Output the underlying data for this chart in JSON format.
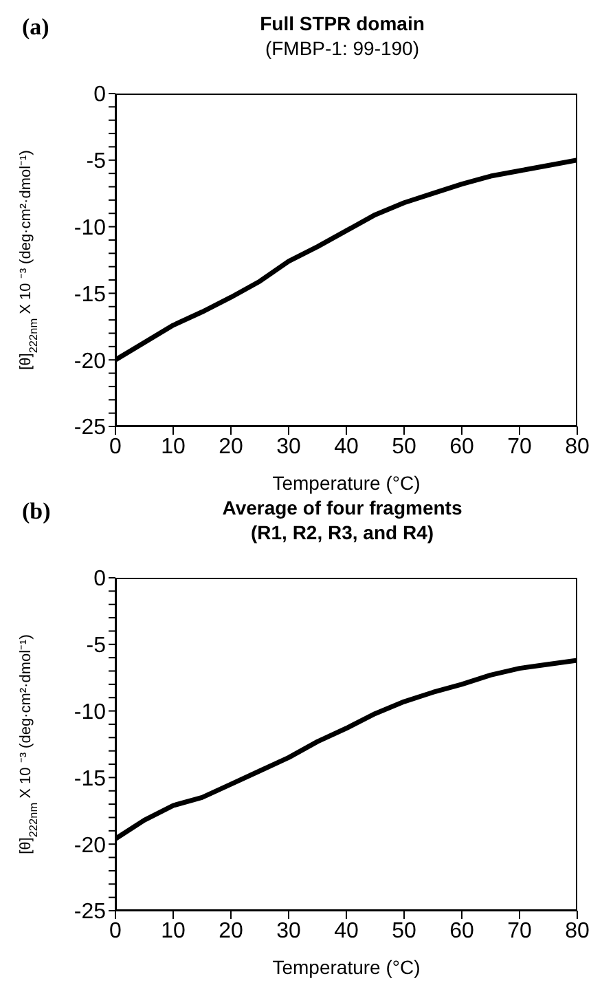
{
  "chart_data": [
    {
      "type": "line",
      "title": "Full STPR domain",
      "subtitle": "(FMBP-1: 99-190)",
      "xlabel": "Temperature (°C)",
      "ylabel": "[θ]$_{222nm}$ X 10 ⁻³ (deg·cm²·dmol⁻¹)",
      "annotations": [
        "(a)"
      ],
      "x": [
        0,
        5,
        10,
        15,
        20,
        25,
        30,
        35,
        40,
        45,
        50,
        55,
        60,
        65,
        70,
        75,
        80
      ],
      "series": [
        {
          "color": "#000000",
          "values": [
            -20,
            -18.7,
            -17.4,
            -16.4,
            -15.3,
            -14.1,
            -12.6,
            -11.5,
            -10.3,
            -9.1,
            -8.2,
            -7.5,
            -6.8,
            -6.2,
            -5.8,
            -5.4,
            -5.0
          ]
        }
      ],
      "xlim": [
        0,
        80
      ],
      "xticks": [
        0,
        10,
        20,
        30,
        40,
        50,
        60,
        70,
        80
      ],
      "ylim": [
        -25,
        0
      ],
      "yticks": [
        0,
        {
          "value": -1,
          "label": null
        },
        {
          "value": -2,
          "label": null
        },
        {
          "value": -3,
          "label": null
        },
        {
          "value": -4,
          "label": null
        },
        -5,
        {
          "value": -6,
          "label": null
        },
        {
          "value": -7,
          "label": null
        },
        {
          "value": -8,
          "label": null
        },
        {
          "value": -9,
          "label": null
        },
        -10,
        {
          "value": -11,
          "label": null
        },
        {
          "value": -12,
          "label": null
        },
        {
          "value": -13,
          "label": null
        },
        {
          "value": -14,
          "label": null
        },
        -15,
        {
          "value": -16,
          "label": null
        },
        {
          "value": -17,
          "label": null
        },
        {
          "value": -18,
          "label": null
        },
        {
          "value": -19,
          "label": null
        },
        -20,
        {
          "value": -21,
          "label": null
        },
        {
          "value": -22,
          "label": null
        },
        {
          "value": -23,
          "label": null
        },
        {
          "value": -24,
          "label": null
        },
        -25
      ],
      "grid": false,
      "legend": false
    },
    {
      "type": "line",
      "title": "Average of four fragments\n(R1, R2, R3, and R4)",
      "xlabel": "Temperature (°C)",
      "ylabel": "[θ]$_{222nm}$ X 10 ⁻³ (deg·cm²·dmol⁻¹)",
      "annotations": [
        "(b)"
      ],
      "x": [
        0,
        5,
        10,
        15,
        20,
        25,
        30,
        35,
        40,
        45,
        50,
        55,
        60,
        65,
        70,
        75,
        80
      ],
      "series": [
        {
          "color": "#000000",
          "values": [
            -19.6,
            -18.2,
            -17.1,
            -16.5,
            -15.5,
            -14.5,
            -13.5,
            -12.3,
            -11.3,
            -10.2,
            -9.3,
            -8.6,
            -8.0,
            -7.3,
            -6.8,
            -6.5,
            -6.2
          ]
        }
      ],
      "xlim": [
        0,
        80
      ],
      "xticks": [
        0,
        10,
        20,
        30,
        40,
        50,
        60,
        70,
        80
      ],
      "ylim": [
        -25,
        0
      ],
      "yticks": [
        0,
        {
          "value": -1,
          "label": null
        },
        {
          "value": -2,
          "label": null
        },
        {
          "value": -3,
          "label": null
        },
        {
          "value": -4,
          "label": null
        },
        -5,
        {
          "value": -6,
          "label": null
        },
        {
          "value": -7,
          "label": null
        },
        {
          "value": -8,
          "label": null
        },
        {
          "value": -9,
          "label": null
        },
        -10,
        {
          "value": -11,
          "label": null
        },
        {
          "value": -12,
          "label": null
        },
        {
          "value": -13,
          "label": null
        },
        {
          "value": -14,
          "label": null
        },
        -15,
        {
          "value": -16,
          "label": null
        },
        {
          "value": -17,
          "label": null
        },
        {
          "value": -18,
          "label": null
        },
        {
          "value": -19,
          "label": null
        },
        -20,
        {
          "value": -21,
          "label": null
        },
        {
          "value": -22,
          "label": null
        },
        {
          "value": -23,
          "label": null
        },
        {
          "value": -24,
          "label": null
        },
        -25
      ],
      "grid": false,
      "legend": false
    }
  ]
}
